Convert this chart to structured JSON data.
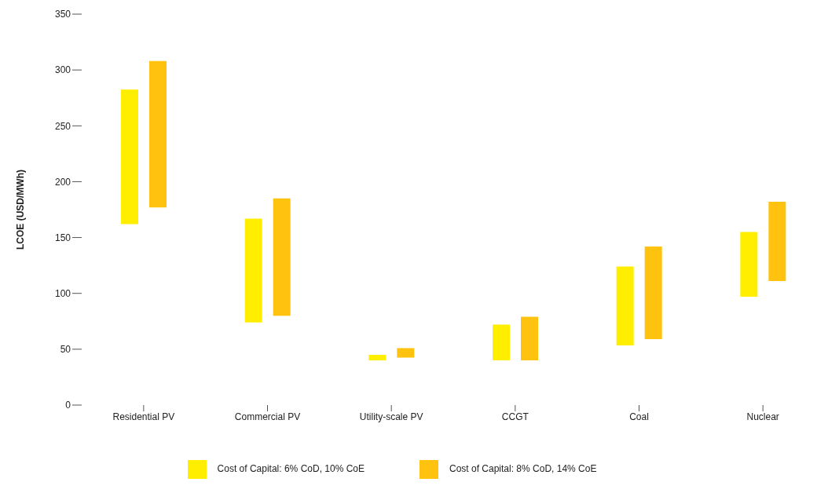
{
  "chart_data": {
    "type": "bar",
    "ylabel": "LCOE (USD/MWh)",
    "categories": [
      "Residential PV",
      "Commercial PV",
      "Utility-scale PV",
      "CCGT",
      "Coal",
      "Nuclear"
    ],
    "series": [
      {
        "name": "Cost of Capital: 6% CoD, 10% CoE",
        "color": "#ffee00",
        "base": [
          162,
          74,
          40,
          40,
          53.5,
          97
        ],
        "values": [
          120.5,
          93,
          5,
          32,
          70.5,
          58
        ]
      },
      {
        "name": "Cost of Capital: 8% CoD, 14% CoE",
        "color": "#ffc20e",
        "base": [
          177,
          80,
          42.5,
          40,
          59,
          111
        ],
        "values": [
          131,
          105,
          8.5,
          39,
          83,
          71
        ]
      }
    ],
    "ylim": [
      0,
      350
    ],
    "yticks": [
      0,
      50,
      100,
      150,
      200,
      250,
      300,
      350
    ],
    "grid": false,
    "legend": "bottom"
  }
}
